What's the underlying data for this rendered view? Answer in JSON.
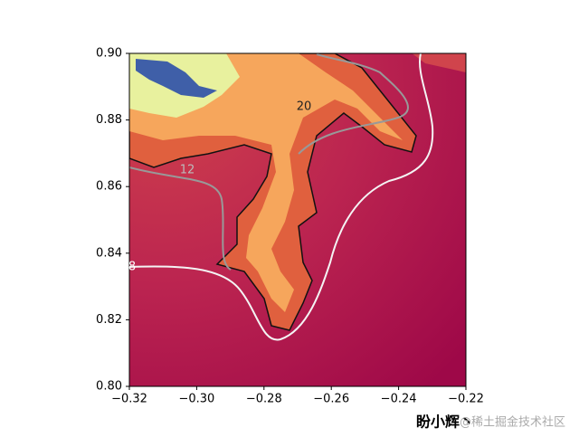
{
  "chart_data": {
    "type": "image",
    "xlim": [
      -0.32,
      -0.22
    ],
    "xticks": [
      {
        "value": -0.32,
        "label": "−0.32"
      },
      {
        "value": -0.3,
        "label": "−0.30"
      },
      {
        "value": -0.28,
        "label": "−0.28"
      },
      {
        "value": -0.26,
        "label": "−0.26"
      },
      {
        "value": -0.24,
        "label": "−0.24"
      },
      {
        "value": -0.22,
        "label": "−0.22"
      }
    ],
    "ylim": [
      0.8,
      0.9
    ],
    "yticks": [
      {
        "value": 0.8,
        "label": "0.80"
      },
      0.82,
      0.84,
      0.86,
      0.88,
      {
        "value": 0.9,
        "label": "0.90"
      }
    ],
    "contour_labels": [
      "20",
      "12",
      "8"
    ]
  },
  "watermark": {
    "author": "盼小辉丶",
    "site": "@稀土掘金技术社区"
  }
}
